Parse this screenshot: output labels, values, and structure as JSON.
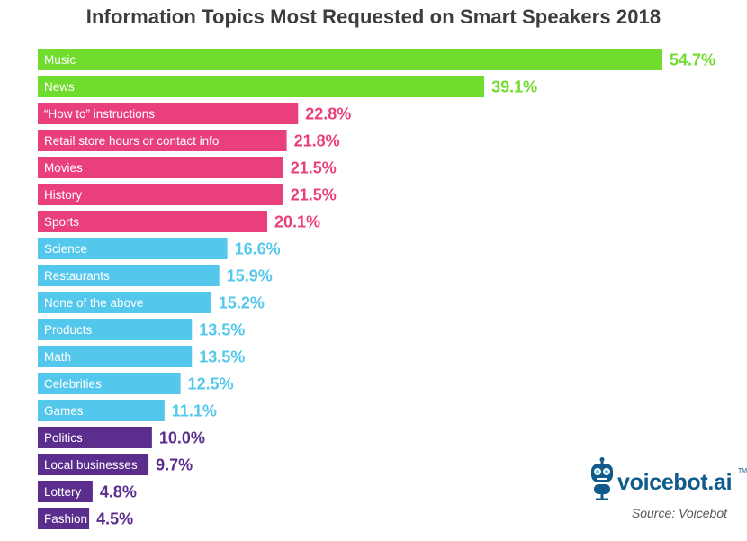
{
  "colors": {
    "green": "#6fdc2e",
    "pink": "#ea3f7d",
    "blue": "#53c8ec",
    "purple": "#5b2d8d",
    "logo": "#0f5c8c"
  },
  "branding": {
    "logo_text": "voicebot.ai",
    "trademark": "TM",
    "logo_icon": "robot-microphone-icon",
    "source": "Source: Voicebot"
  },
  "chart_data": {
    "type": "bar",
    "orientation": "horizontal",
    "title": "Information Topics Most Requested on Smart Speakers 2018",
    "xlabel": "",
    "ylabel": "",
    "unit": "%",
    "categories": [
      "Music",
      "News",
      "“How to” instructions",
      "Retail store hours or contact info",
      "Movies",
      "History",
      "Sports",
      "Science",
      "Restaurants",
      "None of the above",
      "Products",
      "Math",
      "Celebrities",
      "Games",
      "Politics",
      "Local businesses",
      "Lottery",
      "Fashion"
    ],
    "values": [
      54.7,
      39.1,
      22.8,
      21.8,
      21.5,
      21.5,
      20.1,
      16.6,
      15.9,
      15.2,
      13.5,
      13.5,
      12.5,
      11.1,
      10.0,
      9.7,
      4.8,
      4.5
    ],
    "value_labels": [
      "54.7%",
      "39.1%",
      "22.8%",
      "21.8%",
      "21.5%",
      "21.5%",
      "20.1%",
      "16.6%",
      "15.9%",
      "15.2%",
      "13.5%",
      "13.5%",
      "12.5%",
      "11.1%",
      "10.0%",
      "9.7%",
      "4.8%",
      "4.5%"
    ],
    "color_groups": [
      "green",
      "green",
      "pink",
      "pink",
      "pink",
      "pink",
      "pink",
      "blue",
      "blue",
      "blue",
      "blue",
      "blue",
      "blue",
      "blue",
      "purple",
      "purple",
      "purple",
      "purple"
    ],
    "xlim": [
      0,
      54.7
    ],
    "grid": false,
    "legend": "none"
  }
}
